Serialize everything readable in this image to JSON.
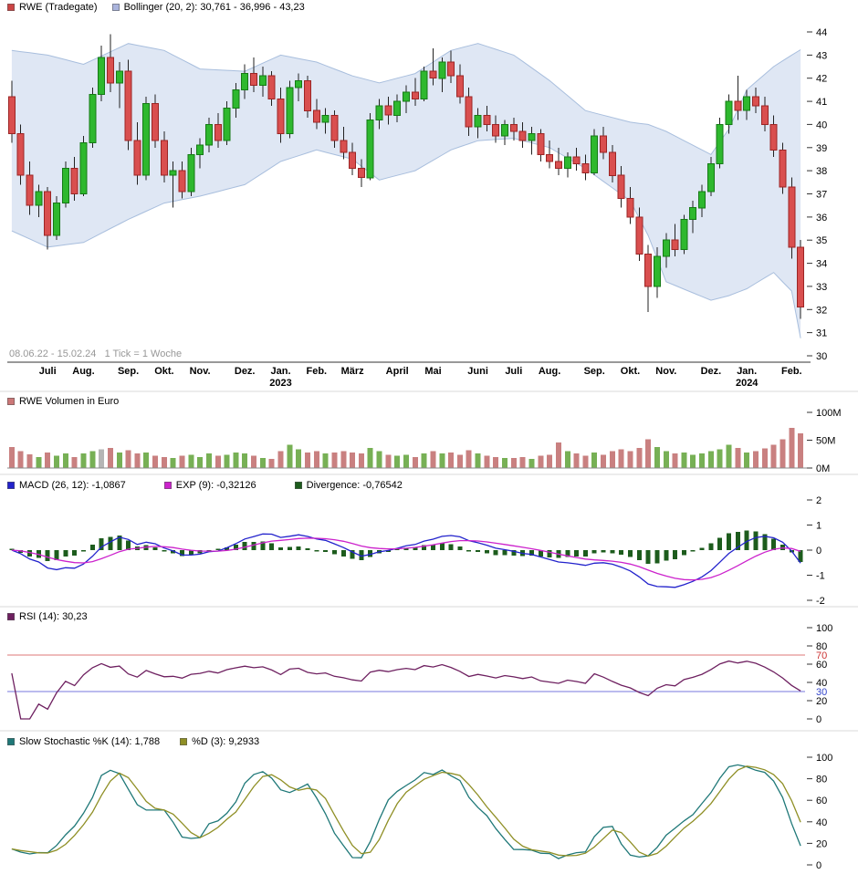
{
  "legends": {
    "price_symbol": "RWE (Tradegate)",
    "bollinger": "Bollinger (20, 2): 30,761 - 36,996 - 43,23",
    "volume": "RWE Volumen in Euro",
    "macd": "MACD (26, 12): -1,0867",
    "exp": "EXP (9): -0,32126",
    "divergence": "Divergence: -0,76542",
    "rsi": "RSI (14): 30,23",
    "stoch_k": "Slow Stochastic %K (14): 1,788",
    "stoch_d": "%D (3): 9,2933"
  },
  "footnote": "08.06.22 - 15.02.24   1 Tick = 1 Woche",
  "colors": {
    "legend_rwe": "#cc4444",
    "legend_bollinger": "#aab4dd",
    "legend_volume": "#cc7777",
    "candle_up": "#2eb82e",
    "candle_up_border": "#157a15",
    "candle_down": "#d94f4f",
    "candle_down_border": "#9c2525",
    "wick": "#222222",
    "boll_fill": "rgba(150,175,220,0.30)",
    "boll_stroke": "#a8bedd",
    "volume_up": "#77b055",
    "volume_down": "#c98080",
    "volume_gray": "#b5b5b5",
    "macd_line": "#2222cc",
    "exp_line": "#cc22cc",
    "macd_hist": "#1d5c1d",
    "rsi_line": "#6e2060",
    "rsi_ob_line": "#dd7777",
    "rsi_os_line": "#7777dd",
    "stoch_k": "#1f7878",
    "stoch_d": "#8f8f25"
  },
  "axes": {
    "price_ticks": [
      44,
      43,
      42,
      41,
      40,
      39,
      38,
      37,
      36,
      35,
      34,
      33,
      32,
      31,
      30
    ],
    "volume_ticks": [
      {
        "label": "100M",
        "v": 100
      },
      {
        "label": "50M",
        "v": 50
      },
      {
        "label": "0M",
        "v": 0
      }
    ],
    "macd_ticks": [
      2,
      1,
      0,
      -1,
      -2
    ],
    "rsi_ticks": [
      100,
      80,
      60,
      40,
      20,
      0
    ],
    "rsi_special": [
      {
        "label": "70",
        "v": 70,
        "color": "#cc3333"
      },
      {
        "label": "30",
        "v": 30,
        "color": "#3344cc"
      }
    ],
    "stoch_ticks": [
      100,
      80,
      60,
      40,
      20,
      0
    ]
  },
  "chart_data": {
    "type": "candlestick-multi-panel",
    "title": "RWE (Tradegate)",
    "period": "08.06.22 - 15.02.24",
    "tick_interval": "1 Tick = 1 Woche",
    "price": {
      "ylim": [
        30,
        44
      ],
      "candles": [
        [
          41.2,
          41.9,
          39.2,
          39.6
        ],
        [
          39.6,
          40.0,
          37.4,
          37.8
        ],
        [
          37.8,
          38.4,
          36.1,
          36.5
        ],
        [
          36.5,
          37.4,
          36.0,
          37.1
        ],
        [
          37.1,
          37.3,
          34.6,
          35.2
        ],
        [
          35.2,
          36.9,
          35.0,
          36.6
        ],
        [
          36.6,
          38.4,
          36.4,
          38.1
        ],
        [
          38.1,
          38.6,
          36.7,
          37.0
        ],
        [
          37.0,
          39.5,
          36.9,
          39.2
        ],
        [
          39.2,
          41.6,
          39.0,
          41.3
        ],
        [
          41.3,
          43.4,
          41.0,
          42.9
        ],
        [
          42.9,
          43.9,
          41.4,
          41.8
        ],
        [
          41.8,
          42.7,
          40.7,
          42.3
        ],
        [
          42.3,
          42.8,
          38.9,
          39.3
        ],
        [
          39.3,
          40.1,
          37.4,
          37.8
        ],
        [
          37.8,
          41.2,
          37.6,
          40.9
        ],
        [
          40.9,
          41.3,
          39.0,
          39.3
        ],
        [
          39.3,
          39.7,
          37.5,
          37.8
        ],
        [
          37.8,
          38.4,
          36.4,
          38.0
        ],
        [
          38.0,
          38.4,
          36.8,
          37.1
        ],
        [
          37.1,
          39.0,
          36.9,
          38.7
        ],
        [
          38.7,
          39.4,
          38.1,
          39.1
        ],
        [
          39.1,
          40.3,
          38.8,
          40.0
        ],
        [
          40.0,
          40.5,
          39.0,
          39.3
        ],
        [
          39.3,
          41.0,
          39.1,
          40.7
        ],
        [
          40.7,
          41.8,
          40.3,
          41.5
        ],
        [
          41.5,
          42.6,
          41.1,
          42.2
        ],
        [
          42.2,
          42.9,
          41.4,
          41.7
        ],
        [
          41.7,
          42.5,
          41.2,
          42.1
        ],
        [
          42.1,
          42.3,
          40.8,
          41.1
        ],
        [
          41.1,
          41.6,
          39.2,
          39.6
        ],
        [
          39.6,
          41.9,
          39.4,
          41.6
        ],
        [
          41.6,
          42.2,
          41.0,
          41.9
        ],
        [
          41.9,
          42.1,
          40.3,
          40.6
        ],
        [
          40.6,
          41.1,
          39.8,
          40.1
        ],
        [
          40.1,
          40.7,
          39.6,
          40.4
        ],
        [
          40.4,
          40.6,
          39.0,
          39.3
        ],
        [
          39.3,
          39.9,
          38.5,
          38.8
        ],
        [
          38.8,
          39.2,
          37.8,
          38.1
        ],
        [
          38.1,
          38.5,
          37.3,
          37.7
        ],
        [
          37.7,
          40.5,
          37.6,
          40.2
        ],
        [
          40.2,
          41.1,
          39.8,
          40.8
        ],
        [
          40.8,
          41.2,
          40.0,
          40.4
        ],
        [
          40.4,
          41.3,
          40.1,
          41.0
        ],
        [
          41.0,
          41.7,
          40.5,
          41.4
        ],
        [
          41.4,
          42.0,
          40.8,
          41.1
        ],
        [
          41.1,
          42.5,
          41.0,
          42.3
        ],
        [
          42.3,
          43.3,
          41.7,
          42.0
        ],
        [
          42.0,
          42.9,
          41.4,
          42.7
        ],
        [
          42.7,
          43.2,
          41.8,
          42.1
        ],
        [
          42.1,
          42.6,
          40.9,
          41.2
        ],
        [
          41.2,
          41.6,
          39.5,
          39.9
        ],
        [
          39.9,
          40.7,
          39.4,
          40.4
        ],
        [
          40.4,
          40.8,
          39.7,
          40.0
        ],
        [
          40.0,
          40.4,
          39.2,
          39.5
        ],
        [
          39.5,
          40.2,
          39.1,
          40.0
        ],
        [
          40.0,
          40.3,
          39.3,
          39.7
        ],
        [
          39.7,
          40.1,
          39.0,
          39.3
        ],
        [
          39.3,
          39.9,
          38.7,
          39.6
        ],
        [
          39.6,
          39.8,
          38.4,
          38.7
        ],
        [
          38.7,
          39.3,
          38.1,
          38.4
        ],
        [
          38.4,
          39.0,
          37.8,
          38.1
        ],
        [
          38.1,
          38.8,
          37.7,
          38.6
        ],
        [
          38.6,
          39.0,
          38.0,
          38.3
        ],
        [
          38.3,
          38.7,
          37.6,
          37.9
        ],
        [
          37.9,
          39.8,
          37.8,
          39.5
        ],
        [
          39.5,
          39.9,
          38.5,
          38.8
        ],
        [
          38.8,
          39.1,
          37.5,
          37.8
        ],
        [
          37.8,
          38.2,
          36.4,
          36.8
        ],
        [
          36.8,
          37.3,
          35.7,
          36.0
        ],
        [
          36.0,
          36.4,
          34.1,
          34.4
        ],
        [
          34.4,
          34.8,
          31.9,
          33.0
        ],
        [
          33.0,
          34.7,
          32.5,
          34.3
        ],
        [
          34.3,
          35.3,
          33.8,
          35.0
        ],
        [
          35.0,
          35.7,
          34.3,
          34.6
        ],
        [
          34.6,
          36.1,
          34.4,
          35.9
        ],
        [
          35.9,
          36.7,
          35.3,
          36.4
        ],
        [
          36.4,
          37.4,
          36.0,
          37.1
        ],
        [
          37.1,
          38.6,
          36.9,
          38.3
        ],
        [
          38.3,
          40.3,
          38.1,
          40.0
        ],
        [
          40.0,
          41.3,
          39.6,
          41.0
        ],
        [
          41.0,
          42.1,
          40.2,
          40.6
        ],
        [
          40.6,
          41.5,
          40.2,
          41.2
        ],
        [
          41.2,
          41.6,
          40.5,
          40.8
        ],
        [
          40.8,
          41.2,
          39.7,
          40.0
        ],
        [
          40.0,
          40.4,
          38.6,
          38.9
        ],
        [
          38.9,
          39.2,
          37.0,
          37.3
        ],
        [
          37.3,
          37.7,
          34.2,
          34.7
        ],
        [
          34.7,
          35.0,
          31.6,
          32.1
        ]
      ],
      "bollinger": {
        "params": "(20, 2)",
        "last_lower": 30.761,
        "last_middle": 36.996,
        "last_upper": 43.23,
        "keyframes": [
          [
            0,
            43.2,
            35.4
          ],
          [
            4,
            43.0,
            34.7
          ],
          [
            8,
            42.6,
            34.9
          ],
          [
            13,
            43.5,
            35.9
          ],
          [
            17,
            43.2,
            36.6
          ],
          [
            21,
            42.4,
            36.9
          ],
          [
            26,
            42.3,
            37.4
          ],
          [
            30,
            43.0,
            38.4
          ],
          [
            34,
            42.7,
            38.9
          ],
          [
            38,
            42.1,
            38.5
          ],
          [
            41,
            41.8,
            37.6
          ],
          [
            45,
            42.2,
            38.0
          ],
          [
            49,
            43.2,
            38.9
          ],
          [
            52,
            43.5,
            39.3
          ],
          [
            56,
            43.0,
            39.4
          ],
          [
            60,
            41.9,
            39.0
          ],
          [
            64,
            40.6,
            38.1
          ],
          [
            69,
            40.1,
            36.7
          ],
          [
            71,
            40.0,
            35.2
          ],
          [
            73,
            39.7,
            33.2
          ],
          [
            78,
            38.7,
            32.4
          ],
          [
            80,
            39.8,
            32.6
          ],
          [
            82,
            41.5,
            32.9
          ],
          [
            85,
            42.5,
            33.6
          ],
          [
            87,
            43.0,
            32.8
          ],
          [
            88,
            43.23,
            30.76
          ]
        ]
      }
    },
    "volume": {
      "unit": "EUR millions",
      "ylim": [
        0,
        100
      ],
      "values": [
        38,
        30,
        25,
        20,
        28,
        22,
        26,
        20,
        26,
        30,
        34,
        36,
        28,
        32,
        26,
        28,
        22,
        20,
        18,
        22,
        24,
        20,
        26,
        22,
        24,
        28,
        26,
        22,
        18,
        16,
        30,
        42,
        34,
        28,
        30,
        26,
        28,
        30,
        28,
        26,
        36,
        30,
        24,
        22,
        24,
        20,
        26,
        30,
        26,
        28,
        24,
        32,
        26,
        22,
        20,
        18,
        18,
        20,
        16,
        22,
        24,
        46,
        30,
        26,
        22,
        28,
        24,
        30,
        34,
        30,
        36,
        52,
        38,
        30,
        26,
        28,
        24,
        26,
        30,
        34,
        42,
        36,
        28,
        30,
        35,
        42,
        52,
        72,
        62
      ],
      "gray_indices": [
        10
      ]
    },
    "macd": {
      "params": [
        26,
        12
      ],
      "signal": 9,
      "ylim": [
        -2,
        2
      ],
      "last": {
        "macd": -1.0867,
        "exp": -0.32126,
        "divergence": -0.76542
      }
    },
    "rsi": {
      "period": 14,
      "ylim": [
        0,
        100
      ],
      "last": 30.23,
      "overbought": 70,
      "oversold": 30
    },
    "stochastic": {
      "k_period": 14,
      "d_period": 3,
      "ylim": [
        0,
        100
      ],
      "last_k": 1.788,
      "last_d": 9.2933
    },
    "months": [
      {
        "label": "Juli",
        "i": 4
      },
      {
        "label": "Aug.",
        "i": 8
      },
      {
        "label": "Sep.",
        "i": 13
      },
      {
        "label": "Okt.",
        "i": 17
      },
      {
        "label": "Nov.",
        "i": 21
      },
      {
        "label": "Dez.",
        "i": 26
      },
      {
        "label": "Jan.",
        "i": 30,
        "year": "2023"
      },
      {
        "label": "Feb.",
        "i": 34
      },
      {
        "label": "März",
        "i": 38
      },
      {
        "label": "April",
        "i": 43
      },
      {
        "label": "Mai",
        "i": 47
      },
      {
        "label": "Juni",
        "i": 52
      },
      {
        "label": "Juli",
        "i": 56
      },
      {
        "label": "Aug.",
        "i": 60
      },
      {
        "label": "Sep.",
        "i": 65
      },
      {
        "label": "Okt.",
        "i": 69
      },
      {
        "label": "Nov.",
        "i": 73
      },
      {
        "label": "Dez.",
        "i": 78
      },
      {
        "label": "Jan.",
        "i": 82,
        "year": "2024"
      },
      {
        "label": "Feb.",
        "i": 87
      }
    ]
  }
}
